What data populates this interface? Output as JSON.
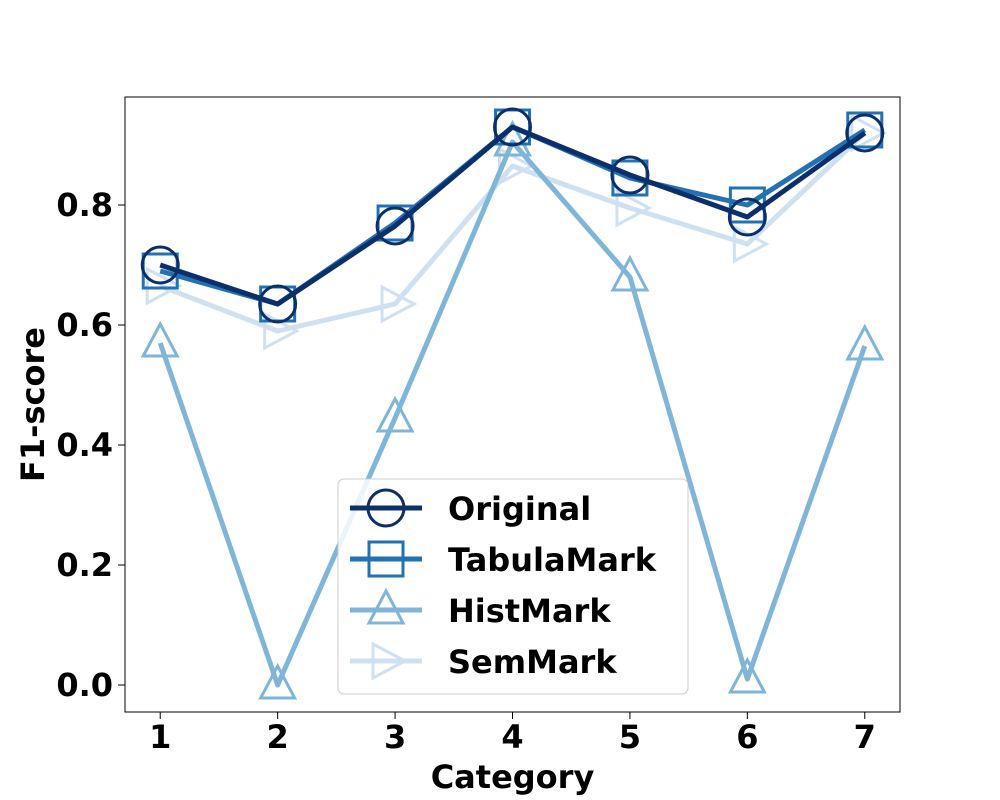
{
  "chart_data": {
    "type": "line",
    "title": "",
    "xlabel": "Category",
    "ylabel": "F1-score",
    "x": [
      1,
      2,
      3,
      4,
      5,
      6,
      7
    ],
    "x_tick_labels": [
      "1",
      "2",
      "3",
      "4",
      "5",
      "6",
      "7"
    ],
    "y_ticks": [
      0.0,
      0.2,
      0.4,
      0.6,
      0.8
    ],
    "y_tick_labels": [
      "0.0",
      "0.2",
      "0.4",
      "0.6",
      "0.8"
    ],
    "xlim": [
      0.7,
      7.3
    ],
    "ylim": [
      -0.045,
      0.98
    ],
    "grid": false,
    "legend_position": "lower center",
    "series": [
      {
        "name": "Original",
        "marker": "circle",
        "color": "#0b2f6b",
        "values": [
          0.7,
          0.635,
          0.765,
          0.93,
          0.85,
          0.78,
          0.92
        ]
      },
      {
        "name": "TabulaMark",
        "marker": "square",
        "color": "#2271b3",
        "values": [
          0.69,
          0.635,
          0.77,
          0.93,
          0.845,
          0.8,
          0.925
        ]
      },
      {
        "name": "HistMark",
        "marker": "triangle-up",
        "color": "#7fb5d8",
        "values": [
          0.57,
          0.0,
          0.445,
          0.905,
          0.68,
          0.01,
          0.565
        ]
      },
      {
        "name": "SemMark",
        "marker": "triangle-right",
        "color": "#cfe0f1",
        "values": [
          0.665,
          0.59,
          0.635,
          0.865,
          0.795,
          0.735,
          0.92
        ]
      }
    ]
  }
}
